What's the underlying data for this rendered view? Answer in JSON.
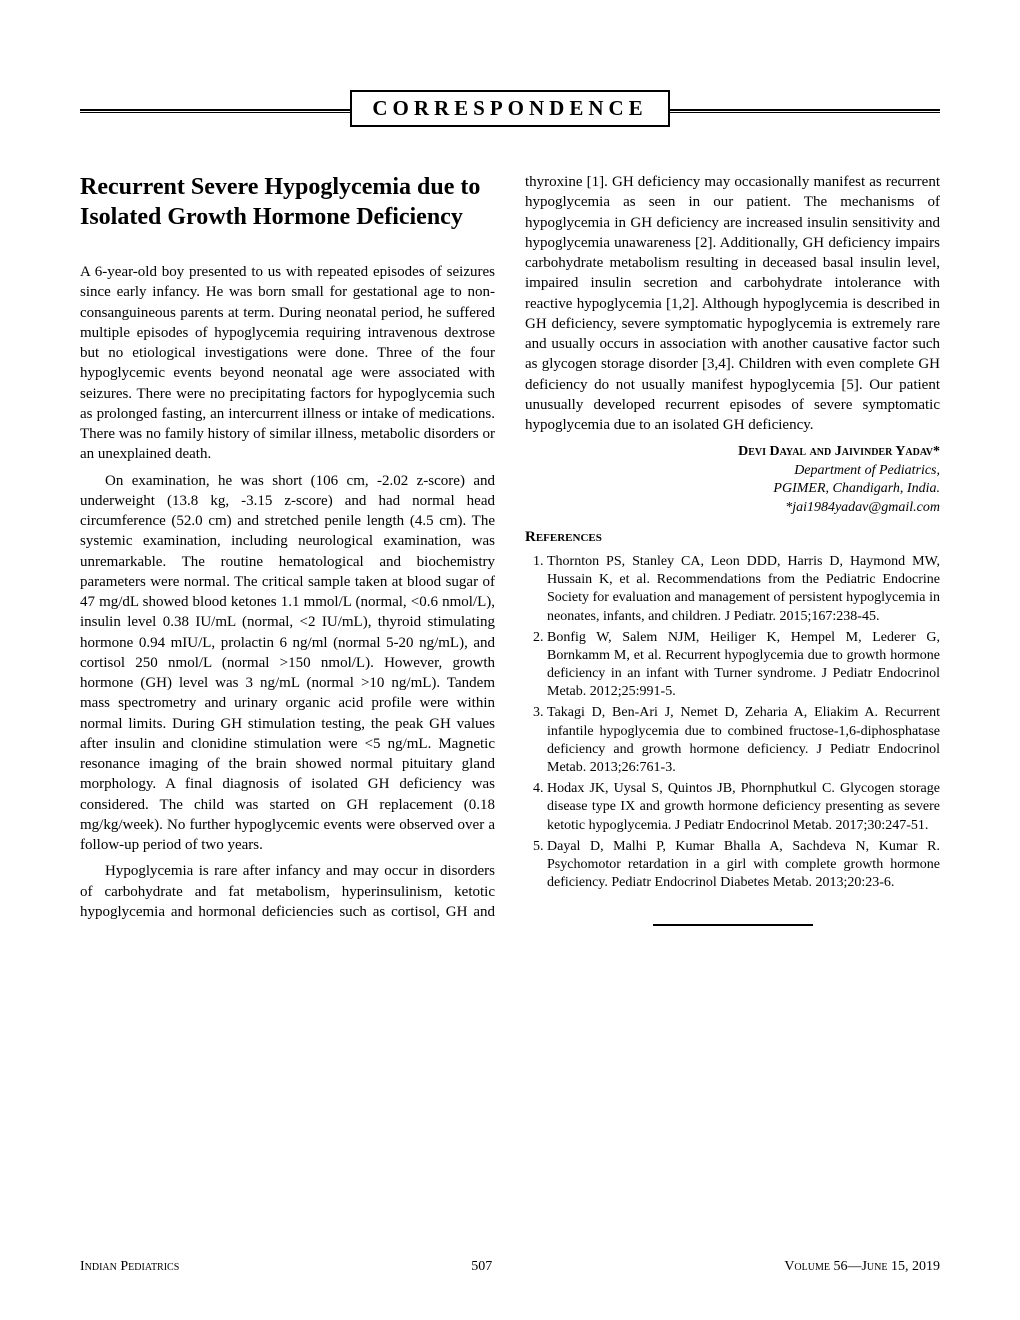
{
  "header": {
    "label": "CORRESPONDENCE"
  },
  "article": {
    "title": "Recurrent Severe Hypoglycemia due to Isolated Growth Hormone Deficiency",
    "paragraphs": [
      "A 6-year-old boy presented to us with repeated episodes of seizures since early infancy. He was born small for gestational age to non-consanguineous parents at term. During neonatal period, he suffered multiple episodes of hypoglycemia requiring intravenous dextrose but no etiological investigations were done. Three of the four hypoglycemic events beyond neonatal age were associated with seizures. There were no precipitating factors for hypoglycemia such as prolonged fasting, an intercurrent illness or intake of medications. There was no family history of similar illness, metabolic disorders or an unexplained death.",
      "On examination, he was short (106 cm, -2.02 z-score) and underweight (13.8 kg, -3.15 z-score) and had normal head circumference (52.0 cm) and stretched penile length (4.5 cm). The systemic examination, including neurological examination, was unremarkable. The routine hematological and biochemistry parameters were normal. The critical sample taken at blood sugar of 47 mg/dL showed blood ketones 1.1 mmol/L (normal, <0.6 nmol/L), insulin level 0.38 IU/mL (normal, <2 IU/mL), thyroid stimulating hormone 0.94 mIU/L, prolactin 6 ng/ml (normal 5-20 ng/mL), and cortisol 250 nmol/L (normal >150 nmol/L). However, growth hormone (GH) level was 3 ng/mL (normal >10 ng/mL). Tandem mass spectrometry and urinary organic acid profile were within normal limits. During GH stimulation testing, the peak GH values after insulin and clonidine stimulation were <5 ng/mL. Magnetic resonance imaging of the brain showed normal pituitary gland morphology. A final diagnosis of isolated GH deficiency was considered. The child was started on GH replacement (0.18 mg/kg/week). No further hypoglycemic events were observed over a follow-up period of two years.",
      "Hypoglycemia is rare after infancy and may occur in disorders of carbohydrate and fat metabolism, hyperinsulinism, ketotic hypoglycemia and hormonal deficiencies such as cortisol, GH and thyroxine [1]. GH deficiency may occasionally manifest as recurrent hypoglycemia as seen in our patient. The mechanisms of hypoglycemia in GH deficiency are increased insulin sensitivity and hypoglycemia unawareness [2]. Additionally, GH deficiency impairs carbohydrate metabolism resulting in deceased basal insulin level, impaired insulin secretion and carbohydrate intolerance with reactive hypoglycemia [1,2]. Although hypoglycemia is described in GH deficiency, severe symptomatic hypoglycemia is extremely rare and usually occurs in association with another causative factor such as glycogen storage disorder [3,4]. Children with even complete GH deficiency do not usually manifest hypoglycemia [5]. Our patient unusually developed recurrent episodes of severe symptomatic hypoglycemia due to an isolated GH deficiency."
    ],
    "authors": "Devi Dayal and Jaivinder Yadav*",
    "affiliation_line1": "Department of Pediatrics,",
    "affiliation_line2": "PGIMER, Chandigarh, India.",
    "email": "*jai1984yadav@gmail.com"
  },
  "references": {
    "heading": "References",
    "items": [
      "Thornton PS, Stanley CA, Leon DDD, Harris D, Haymond MW, Hussain K, et al. Recommendations from the Pediatric Endocrine Society for evaluation and management of persistent hypoglycemia in neonates, infants, and children. J Pediatr. 2015;167:238-45.",
      "Bonfig W, Salem NJM, Heiliger K, Hempel M, Lederer G, Bornkamm M, et al. Recurrent hypoglycemia due to growth hormone deficiency in an infant with Turner syndrome. J Pediatr Endocrinol Metab. 2012;25:991-5.",
      "Takagi D, Ben-Ari J, Nemet D, Zeharia A, Eliakim A. Recurrent infantile hypoglycemia due to combined fructose-1,6-diphosphatase deficiency and growth hormone deficiency. J Pediatr Endocrinol Metab. 2013;26:761-3.",
      "Hodax JK, Uysal S, Quintos JB, Phornphutkul C. Glycogen storage disease type IX and growth hormone deficiency presenting as severe ketotic hypoglycemia. J Pediatr Endocrinol Metab. 2017;30:247-51.",
      "Dayal D, Malhi P, Kumar Bhalla A, Sachdeva N, Kumar R. Psychomotor retardation in a girl with complete growth hormone deficiency. Pediatr Endocrinol Diabetes Metab. 2013;20:23-6."
    ]
  },
  "footer": {
    "journal": "Indian Pediatrics",
    "page": "507",
    "issue": "Volume 56—June 15, 2019"
  }
}
